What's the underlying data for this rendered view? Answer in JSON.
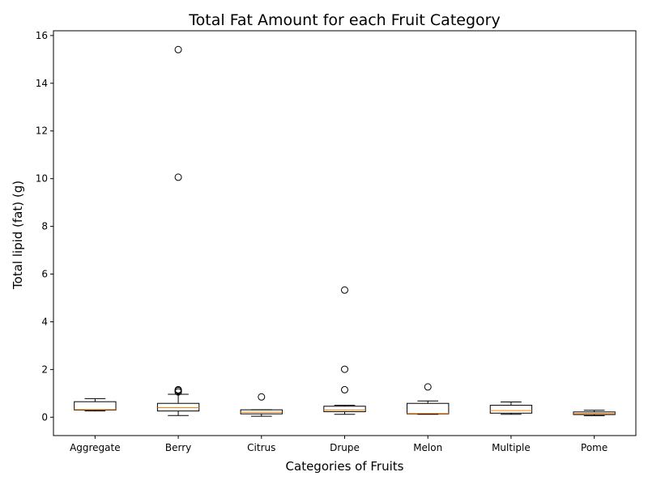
{
  "chart_data": {
    "type": "box",
    "title": "Total Fat Amount for each Fruit Category",
    "xlabel": "Categories of Fruits",
    "ylabel": "Total lipid (fat) (g)",
    "ylim": [
      -0.77,
      16.2
    ],
    "yticks": [
      0,
      2,
      4,
      6,
      8,
      10,
      12,
      14,
      16
    ],
    "categories": [
      "Aggregate",
      "Berry",
      "Citrus",
      "Drupe",
      "Melon",
      "Multiple",
      "Pome"
    ],
    "boxes": [
      {
        "category": "Aggregate",
        "whisker_low": 0.26,
        "q1": 0.3,
        "median": 0.32,
        "q3": 0.65,
        "whisker_high": 0.78,
        "outliers": []
      },
      {
        "category": "Berry",
        "whisker_low": 0.07,
        "q1": 0.26,
        "median": 0.4,
        "q3": 0.58,
        "whisker_high": 0.96,
        "outliers": [
          1.06,
          1.12,
          1.15,
          10.06,
          15.41
        ]
      },
      {
        "category": "Citrus",
        "whisker_low": 0.04,
        "q1": 0.14,
        "median": 0.21,
        "q3": 0.31,
        "whisker_high": 0.31,
        "outliers": [
          0.85
        ]
      },
      {
        "category": "Drupe",
        "whisker_low": 0.12,
        "q1": 0.23,
        "median": 0.3,
        "q3": 0.46,
        "whisker_high": 0.5,
        "outliers": [
          1.15,
          2.01,
          5.33
        ]
      },
      {
        "category": "Melon",
        "whisker_low": 0.12,
        "q1": 0.14,
        "median": 0.16,
        "q3": 0.58,
        "whisker_high": 0.68,
        "outliers": [
          1.27
        ]
      },
      {
        "category": "Multiple",
        "whisker_low": 0.12,
        "q1": 0.17,
        "median": 0.28,
        "q3": 0.5,
        "whisker_high": 0.64,
        "outliers": []
      },
      {
        "category": "Pome",
        "whisker_low": 0.06,
        "q1": 0.11,
        "median": 0.15,
        "q3": 0.22,
        "whisker_high": 0.29,
        "outliers": []
      }
    ],
    "colors": {
      "box": "#000000",
      "median": "#ff7f0e",
      "outlier": "#000000"
    },
    "grid": false,
    "legend": "none"
  }
}
